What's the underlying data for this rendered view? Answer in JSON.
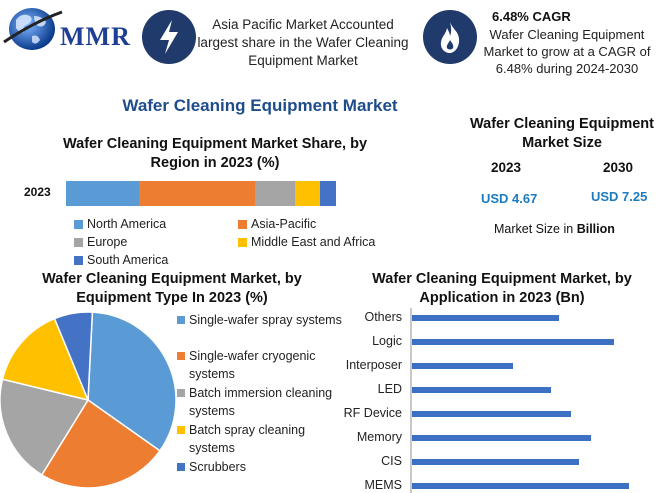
{
  "logo": {
    "text": "MMR",
    "icon": "globe-icon"
  },
  "info_left": {
    "icon": "lightning-icon",
    "text": "Asia Pacific Market Accounted largest share in the Wafer Cleaning Equipment Market"
  },
  "info_right": {
    "icon": "flame-icon",
    "title": "6.48% CAGR",
    "text": "Wafer Cleaning Equipment Market to grow at a CAGR of 6.48% during 2024-2030"
  },
  "main_title": "Wafer Cleaning Equipment Market",
  "colors": {
    "north_america": "#5b9bd5",
    "asia_pacific": "#ed7d31",
    "europe": "#a5a5a5",
    "middle_east_africa": "#ffc000",
    "south_america": "#4472c4",
    "bars": "#3b70c2",
    "title_blue": "#1f4d8c",
    "value_blue": "#1d7bbf"
  },
  "market_size": {
    "title": "Wafer Cleaning Equipment Market Size",
    "year_a": "2023",
    "year_b": "2030",
    "value_a": "USD 4.67",
    "value_b": "USD 7.25",
    "note_prefix": "Market Size in",
    "note_unit": "Billion"
  },
  "chart_data": [
    {
      "type": "bar",
      "orientation": "horizontal-stacked",
      "title": "Wafer Cleaning Equipment Market Share, by Region in 2023 (%)",
      "categories": [
        "2023"
      ],
      "series": [
        {
          "name": "North America",
          "values": [
            27
          ]
        },
        {
          "name": "Asia-Pacific",
          "values": [
            43
          ]
        },
        {
          "name": "Europe",
          "values": [
            15
          ]
        },
        {
          "name": "Middle East and Africa",
          "values": [
            9
          ]
        },
        {
          "name": "South America",
          "values": [
            6
          ]
        }
      ],
      "legend": "bottom"
    },
    {
      "type": "pie",
      "title": "Wafer Cleaning Equipment Market, by Equipment Type In 2023 (%)",
      "labels": [
        "Single-wafer spray systems",
        "Single-wafer cryogenic systems",
        "Batch immersion cleaning systems",
        "Batch spray cleaning systems",
        "Scrubbers"
      ],
      "values": [
        34,
        24,
        20,
        15,
        7
      ],
      "colors": [
        "#5b9bd5",
        "#ed7d31",
        "#a5a5a5",
        "#ffc000",
        "#4472c4"
      ],
      "legend": "right"
    },
    {
      "type": "bar",
      "orientation": "horizontal",
      "title": "Wafer Cleaning Equipment Market, by Application in 2023 (Bn)",
      "categories": [
        "Others",
        "Logic",
        "Interposer",
        "LED",
        "RF Device",
        "Memory",
        "CIS",
        "MEMS"
      ],
      "values": [
        0.58,
        0.8,
        0.4,
        0.55,
        0.63,
        0.71,
        0.66,
        0.86
      ],
      "xlim": [
        0,
        0.95
      ]
    }
  ]
}
